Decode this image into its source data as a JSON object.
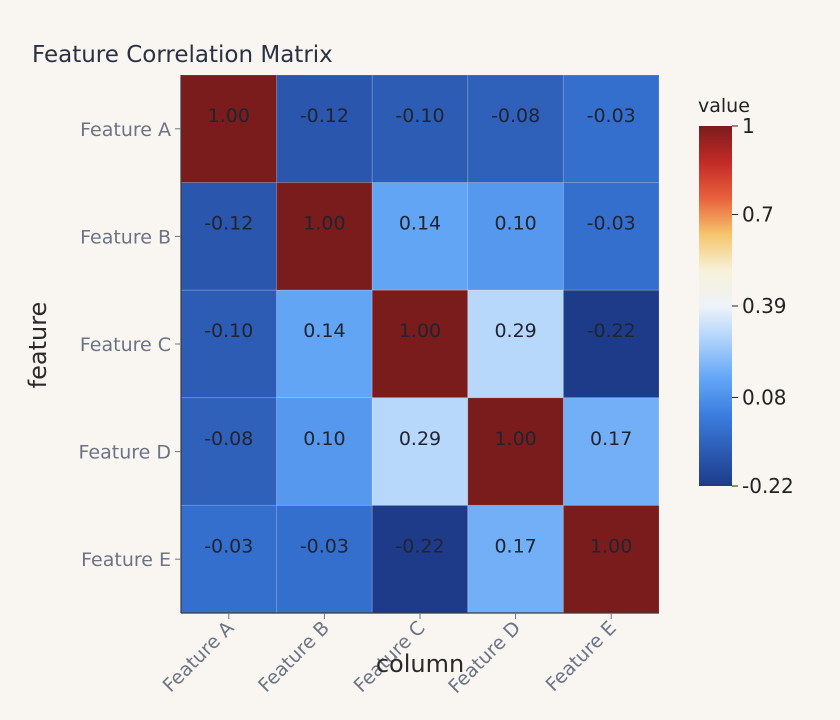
{
  "chart_data": {
    "type": "heatmap",
    "title": "Feature Correlation Matrix",
    "xlabel": "column",
    "ylabel": "feature",
    "x_categories": [
      "Feature A",
      "Feature B",
      "Feature C",
      "Feature D",
      "Feature E"
    ],
    "y_categories": [
      "Feature A",
      "Feature B",
      "Feature C",
      "Feature D",
      "Feature E"
    ],
    "values": [
      [
        1.0,
        -0.12,
        -0.1,
        -0.08,
        -0.03
      ],
      [
        -0.12,
        1.0,
        0.14,
        0.1,
        -0.03
      ],
      [
        -0.1,
        0.14,
        1.0,
        0.29,
        -0.22
      ],
      [
        -0.08,
        0.1,
        0.29,
        1.0,
        0.17
      ],
      [
        -0.03,
        -0.03,
        -0.22,
        0.17,
        1.0
      ]
    ],
    "cell_labels": [
      [
        "1.00",
        "-0.12",
        "-0.10",
        "-0.08",
        "-0.03"
      ],
      [
        "-0.12",
        "1.00",
        "0.14",
        "0.10",
        "-0.03"
      ],
      [
        "-0.10",
        "0.14",
        "1.00",
        "0.29",
        "-0.22"
      ],
      [
        "-0.08",
        "0.10",
        "0.29",
        "1.00",
        "0.17"
      ],
      [
        "-0.03",
        "-0.03",
        "-0.22",
        "0.17",
        "1.00"
      ]
    ],
    "colorbar": {
      "title": "value",
      "range": [
        -0.22,
        1
      ],
      "ticks": [
        1,
        0.7,
        0.39,
        0.08,
        -0.22
      ],
      "tick_labels": [
        "1",
        "0.7",
        "0.39",
        "0.08",
        "-0.22"
      ],
      "colorscale": [
        [
          0.0,
          "#1e3b8a"
        ],
        [
          0.2,
          "#3b7ee0"
        ],
        [
          0.3,
          "#64a7f6"
        ],
        [
          0.42,
          "#b8d8fb"
        ],
        [
          0.5,
          "#eef3f9"
        ],
        [
          0.6,
          "#f7f1d8"
        ],
        [
          0.7,
          "#f6c46c"
        ],
        [
          0.8,
          "#e8603d"
        ],
        [
          0.9,
          "#c22a26"
        ],
        [
          1.0,
          "#7b1c1c"
        ]
      ]
    }
  }
}
